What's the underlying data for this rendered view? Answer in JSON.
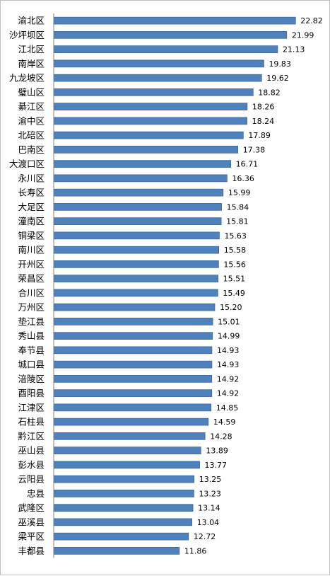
{
  "chart_data": {
    "type": "bar",
    "orientation": "horizontal",
    "categories": [
      "渝北区",
      "沙坪坝区",
      "江北区",
      "南岸区",
      "九龙坡区",
      "璧山区",
      "綦江区",
      "渝中区",
      "北碚区",
      "巴南区",
      "大渡口区",
      "永川区",
      "长寿区",
      "大足区",
      "潼南区",
      "铜梁区",
      "南川区",
      "开州区",
      "荣昌区",
      "合川区",
      "万州区",
      "垫江县",
      "秀山县",
      "奉节县",
      "城口县",
      "涪陵区",
      "酉阳县",
      "江津区",
      "石柱县",
      "黔江区",
      "巫山县",
      "彭水县",
      "云阳县",
      "忠县",
      "武隆区",
      "巫溪县",
      "梁平区",
      "丰都县"
    ],
    "values": [
      22.82,
      21.99,
      21.13,
      19.83,
      19.62,
      18.82,
      18.26,
      18.24,
      17.89,
      17.38,
      16.71,
      16.36,
      15.99,
      15.84,
      15.81,
      15.63,
      15.58,
      15.56,
      15.51,
      15.49,
      15.2,
      15.01,
      14.99,
      14.93,
      14.93,
      14.92,
      14.92,
      14.85,
      14.59,
      14.28,
      13.89,
      13.77,
      13.25,
      13.23,
      13.14,
      13.04,
      12.72,
      11.86
    ],
    "value_labels": [
      "22.82",
      "21.99",
      "21.13",
      "19.83",
      "19.62",
      "18.82",
      "18.26",
      "18.24",
      "17.89",
      "17.38",
      "16.71",
      "16.36",
      "15.99",
      "15.84",
      "15.81",
      "15.63",
      "15.58",
      "15.56",
      "15.51",
      "15.49",
      "15.20",
      "15.01",
      "14.99",
      "14.93",
      "14.93",
      "14.92",
      "14.92",
      "14.85",
      "14.59",
      "14.28",
      "13.89",
      "13.77",
      "13.25",
      "13.23",
      "13.14",
      "13.04",
      "12.72",
      "11.86"
    ],
    "xlim": [
      0,
      25
    ],
    "grid": false,
    "legend": "none",
    "bar_color": "#4f81bd",
    "bar_edge_color": "#2e5a8a",
    "axis_color": "#808080"
  }
}
